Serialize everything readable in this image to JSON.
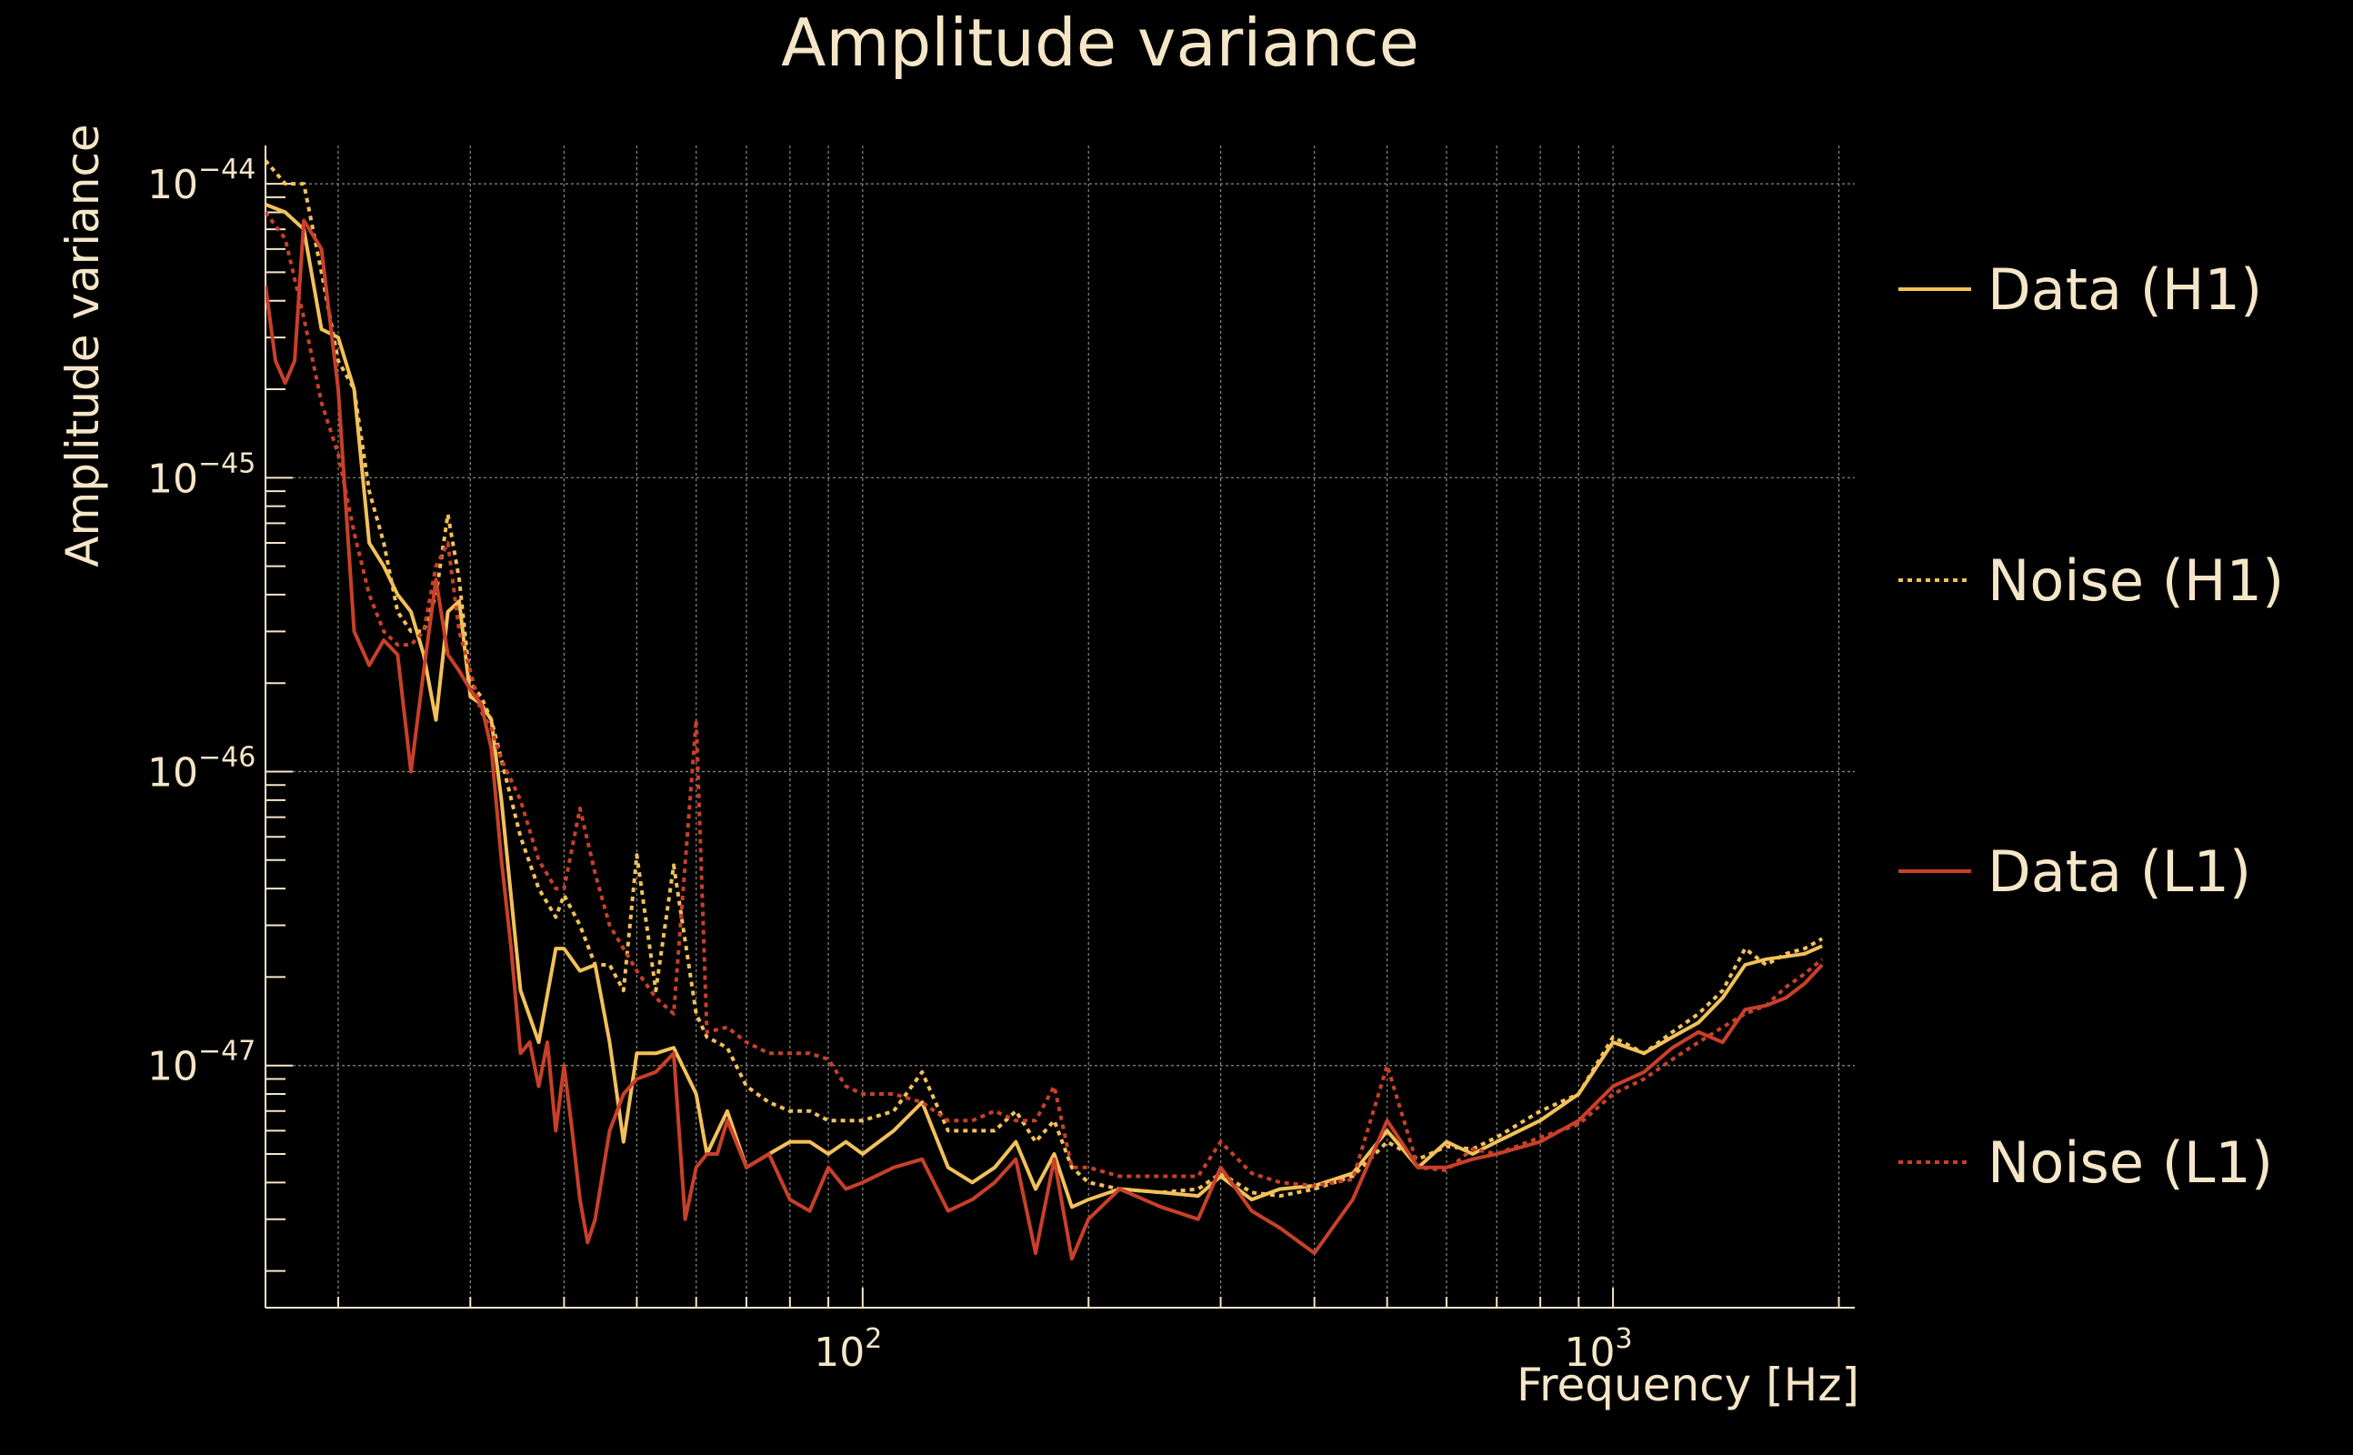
{
  "chart_data": {
    "type": "line",
    "title": "Amplitude variance",
    "xlabel": "Frequency [Hz]",
    "ylabel": "Amplitude variance",
    "xscale": "log",
    "yscale": "log",
    "xlim": [
      16,
      2100
    ],
    "ylim": [
      1.5e-48,
      1.35e-44
    ],
    "grid": true,
    "legend_position": "right",
    "x_ticks": [
      {
        "value": 100,
        "base": "10",
        "exp": "2"
      },
      {
        "value": 1000,
        "base": "10",
        "exp": "3"
      }
    ],
    "y_ticks": [
      {
        "value": 1e-44,
        "base": "10",
        "exp": "−44"
      },
      {
        "value": 1e-45,
        "base": "10",
        "exp": "−45"
      },
      {
        "value": 1e-46,
        "base": "10",
        "exp": "−46"
      },
      {
        "value": 1e-47,
        "base": "10",
        "exp": "−47"
      }
    ],
    "series": [
      {
        "name": "Data (H1)",
        "color": "#f2c15a",
        "dash": "solid",
        "x": [
          16,
          17,
          18,
          19,
          20,
          21,
          22,
          23,
          24,
          25,
          26,
          27,
          28,
          29,
          30,
          31,
          32,
          33,
          35,
          37,
          39,
          40,
          42,
          44,
          46,
          48,
          50,
          53,
          56,
          60,
          62,
          66,
          70,
          75,
          80,
          85,
          90,
          95,
          100,
          110,
          120,
          130,
          140,
          150,
          160,
          170,
          180,
          190,
          200,
          220,
          250,
          280,
          300,
          330,
          360,
          400,
          450,
          500,
          550,
          600,
          650,
          700,
          800,
          900,
          1000,
          1100,
          1200,
          1300,
          1400,
          1500,
          1600,
          1700,
          1800,
          1900
        ],
        "y": [
          8.5e-45,
          8e-45,
          7e-45,
          3.2e-45,
          3e-45,
          2e-45,
          6e-46,
          5e-46,
          4e-46,
          3.5e-46,
          2.5e-46,
          1.5e-46,
          3.5e-46,
          3.8e-46,
          1.8e-46,
          1.7e-46,
          1.5e-46,
          8e-47,
          1.8e-47,
          1.2e-47,
          2.5e-47,
          2.5e-47,
          2.1e-47,
          2.2e-47,
          1.2e-47,
          5.5e-48,
          1.1e-47,
          1.1e-47,
          1.15e-47,
          8e-48,
          5e-48,
          7e-48,
          4.5e-48,
          5e-48,
          5.5e-48,
          5.5e-48,
          5e-48,
          5.5e-48,
          5e-48,
          6e-48,
          7.5e-48,
          4.5e-48,
          4e-48,
          4.5e-48,
          5.5e-48,
          3.8e-48,
          5e-48,
          3.3e-48,
          3.5e-48,
          3.8e-48,
          3.7e-48,
          3.6e-48,
          4.2e-48,
          3.5e-48,
          3.8e-48,
          3.9e-48,
          4.3e-48,
          6e-48,
          4.5e-48,
          5.5e-48,
          5e-48,
          5.5e-48,
          6.5e-48,
          8e-48,
          1.2e-47,
          1.1e-47,
          1.25e-47,
          1.4e-47,
          1.7e-47,
          2.2e-47,
          2.3e-47,
          2.35e-47,
          2.4e-47,
          2.55e-47
        ]
      },
      {
        "name": "Noise (H1)",
        "color": "#f2c15a",
        "dash": "dotted",
        "x": [
          16,
          17,
          18,
          19,
          20,
          21,
          22,
          23,
          24,
          25,
          26,
          27,
          28,
          29,
          30,
          31,
          32,
          33,
          35,
          37,
          39,
          40,
          42,
          44,
          46,
          48,
          50,
          53,
          56,
          60,
          62,
          66,
          70,
          75,
          80,
          85,
          90,
          95,
          100,
          110,
          120,
          130,
          140,
          150,
          160,
          170,
          180,
          190,
          200,
          220,
          250,
          280,
          300,
          330,
          360,
          400,
          450,
          500,
          550,
          600,
          650,
          700,
          800,
          900,
          1000,
          1100,
          1200,
          1300,
          1400,
          1500,
          1600,
          1700,
          1800,
          1900
        ],
        "y": [
          1.2e-44,
          1e-44,
          1e-44,
          5e-45,
          2.5e-45,
          2e-45,
          9e-46,
          6e-46,
          3.5e-46,
          3e-46,
          3e-46,
          4e-46,
          7.5e-46,
          4.5e-46,
          2e-46,
          1.8e-46,
          1.5e-46,
          1.1e-46,
          6e-47,
          4e-47,
          3.2e-47,
          3.8e-47,
          3e-47,
          2.2e-47,
          2.2e-47,
          1.8e-47,
          5.2e-47,
          1.8e-47,
          4.8e-47,
          1.5e-47,
          1.25e-47,
          1.15e-47,
          8.5e-48,
          7.5e-48,
          7e-48,
          7e-48,
          6.5e-48,
          6.5e-48,
          6.5e-48,
          7e-48,
          9.5e-48,
          6e-48,
          6e-48,
          6e-48,
          7e-48,
          5.5e-48,
          6.5e-48,
          4.5e-48,
          4e-48,
          3.8e-48,
          3.7e-48,
          3.8e-48,
          4.3e-48,
          3.7e-48,
          3.6e-48,
          3.8e-48,
          4.2e-48,
          5.5e-48,
          4.8e-48,
          5.3e-48,
          5.2e-48,
          5.7e-48,
          7e-48,
          8e-48,
          1.25e-47,
          1.1e-47,
          1.3e-47,
          1.5e-47,
          1.8e-47,
          2.5e-47,
          2.2e-47,
          2.4e-47,
          2.5e-47,
          2.7e-47
        ]
      },
      {
        "name": "Data (L1)",
        "color": "#c8402a",
        "dash": "solid",
        "x": [
          16,
          16.5,
          17,
          17.5,
          18,
          19,
          20,
          21,
          22,
          23,
          24,
          25,
          26,
          27,
          28,
          29,
          30,
          31,
          32,
          33,
          34,
          35,
          36,
          37,
          38,
          39,
          40,
          41,
          42,
          43,
          44,
          46,
          48,
          50,
          53,
          56,
          58,
          60,
          62,
          64,
          66,
          70,
          75,
          80,
          85,
          90,
          95,
          100,
          110,
          120,
          130,
          140,
          150,
          160,
          170,
          180,
          190,
          200,
          220,
          250,
          280,
          300,
          330,
          360,
          400,
          450,
          500,
          550,
          600,
          650,
          700,
          800,
          900,
          1000,
          1100,
          1200,
          1300,
          1400,
          1500,
          1600,
          1700,
          1800,
          1900
        ],
        "y": [
          4.5e-45,
          2.5e-45,
          2.1e-45,
          2.5e-45,
          7.5e-45,
          6e-45,
          2e-45,
          3e-46,
          2.3e-46,
          2.8e-46,
          2.5e-46,
          1e-46,
          2.2e-46,
          4.5e-46,
          2.5e-46,
          2.2e-46,
          1.9e-46,
          1.7e-46,
          1.2e-46,
          5e-47,
          2.5e-47,
          1.1e-47,
          1.2e-47,
          8.5e-48,
          1.2e-47,
          6e-48,
          1e-47,
          6e-48,
          3.5e-48,
          2.5e-48,
          3e-48,
          6e-48,
          8e-48,
          9e-48,
          9.5e-48,
          1.1e-47,
          3e-48,
          4.5e-48,
          5e-48,
          5e-48,
          6.5e-48,
          4.5e-48,
          5e-48,
          3.5e-48,
          3.2e-48,
          4.5e-48,
          3.8e-48,
          4e-48,
          4.5e-48,
          4.8e-48,
          3.2e-48,
          3.5e-48,
          4e-48,
          4.8e-48,
          2.3e-48,
          4.8e-48,
          2.2e-48,
          3e-48,
          3.8e-48,
          3.3e-48,
          3e-48,
          4.5e-48,
          3.2e-48,
          2.8e-48,
          2.3e-48,
          3.5e-48,
          6.5e-48,
          4.5e-48,
          4.5e-48,
          4.8e-48,
          5e-48,
          5.5e-48,
          6.5e-48,
          8.5e-48,
          9.5e-48,
          1.15e-47,
          1.3e-47,
          1.2e-47,
          1.55e-47,
          1.6e-47,
          1.7e-47,
          1.9e-47,
          2.2e-47
        ]
      },
      {
        "name": "Noise (L1)",
        "color": "#c8402a",
        "dash": "dotted",
        "x": [
          16,
          17,
          18,
          19,
          20,
          21,
          22,
          23,
          24,
          25,
          26,
          27,
          28,
          29,
          30,
          31,
          32,
          33,
          35,
          37,
          39,
          40,
          42,
          44,
          46,
          48,
          50,
          53,
          56,
          60,
          62,
          66,
          70,
          75,
          80,
          85,
          90,
          95,
          100,
          110,
          120,
          130,
          140,
          150,
          160,
          170,
          180,
          190,
          200,
          220,
          250,
          280,
          300,
          330,
          360,
          400,
          450,
          500,
          550,
          600,
          650,
          700,
          800,
          900,
          1000,
          1100,
          1200,
          1300,
          1400,
          1500,
          1600,
          1700,
          1800,
          1900
        ],
        "y": [
          8e-45,
          6.5e-45,
          3.5e-45,
          1.8e-45,
          1.2e-45,
          6.5e-46,
          4e-46,
          3e-46,
          2.7e-46,
          2.7e-46,
          3e-46,
          5e-46,
          6e-46,
          3e-46,
          2.2e-46,
          1.6e-46,
          1.4e-46,
          1.1e-46,
          8e-47,
          5e-47,
          4e-47,
          4e-47,
          7.5e-47,
          4.5e-47,
          3e-47,
          2.5e-47,
          2.1e-47,
          1.7e-47,
          1.5e-47,
          1.5e-46,
          1.3e-47,
          1.35e-47,
          1.2e-47,
          1.1e-47,
          1.1e-47,
          1.1e-47,
          1.05e-47,
          8.5e-48,
          8e-48,
          8e-48,
          7.5e-48,
          6.5e-48,
          6.5e-48,
          7e-48,
          6.5e-48,
          6.5e-48,
          8.5e-48,
          4.5e-48,
          4.5e-48,
          4.2e-48,
          4.2e-48,
          4.2e-48,
          5.5e-48,
          4.3e-48,
          4e-48,
          3.9e-48,
          4.1e-48,
          1e-47,
          4.5e-48,
          4.4e-48,
          5.2e-48,
          5e-48,
          5.7e-48,
          6.3e-48,
          8e-48,
          9e-48,
          1.05e-47,
          1.2e-47,
          1.35e-47,
          1.5e-47,
          1.6e-47,
          1.85e-47,
          2.05e-47,
          2.3e-47
        ]
      }
    ]
  }
}
